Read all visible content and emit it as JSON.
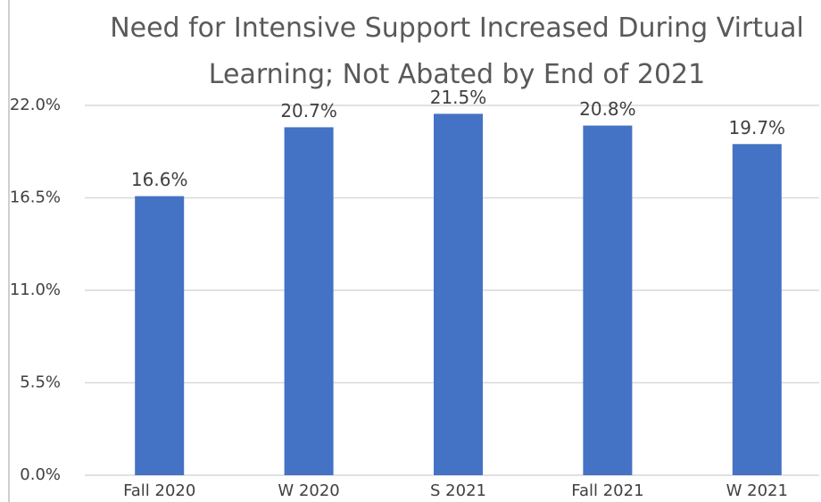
{
  "chart_data": {
    "type": "bar",
    "title": "Need for Intensive Support Increased During Virtual Learning; Not Abated by End of 2021",
    "categories": [
      "Fall 2020",
      "W 2020",
      "S 2021",
      "Fall 2021",
      "W 2021"
    ],
    "values": [
      16.6,
      20.7,
      21.5,
      20.8,
      19.7
    ],
    "value_labels": [
      "16.6%",
      "20.7%",
      "21.5%",
      "20.8%",
      "19.7%"
    ],
    "color": "#4472c4",
    "ylim": [
      0,
      22
    ],
    "yticks": [
      {
        "value": 0,
        "label": "0.0%"
      },
      {
        "value": 5.5,
        "label": "5.5%"
      },
      {
        "value": 11,
        "label": "11.0%"
      },
      {
        "value": 16.5,
        "label": "16.5%"
      },
      {
        "value": 22,
        "label": "22.0%"
      }
    ],
    "grid": true
  }
}
